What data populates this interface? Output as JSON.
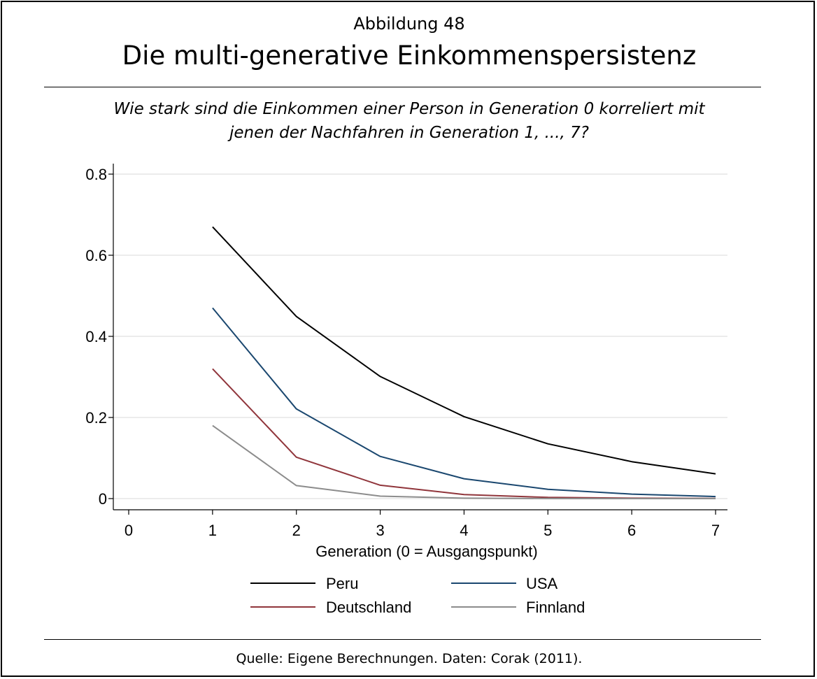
{
  "header": {
    "figure_label": "Abbildung 48",
    "title": "Die multi-generative Einkommenspersistenz",
    "subtitle_line1": "Wie stark sind die Einkommen einer Person in Generation 0 korreliert mit",
    "subtitle_line2": "jenen der Nachfahren in Generation 1, ..., 7?"
  },
  "footer": {
    "source": "Quelle: Eigene Berechnungen. Daten: Corak (2011)."
  },
  "chart_data": {
    "type": "line",
    "title": "Die multi-generative Einkommenspersistenz",
    "xlabel": "Generation (0 = Ausgangspunkt)",
    "ylabel": "",
    "xlim": [
      0,
      7
    ],
    "ylim": [
      0,
      0.8
    ],
    "x_ticks": [
      "0",
      "1",
      "2",
      "3",
      "4",
      "5",
      "6",
      "7"
    ],
    "y_ticks": [
      {
        "value": 0,
        "label": "0"
      },
      {
        "value": 0.2,
        "label": "0.2"
      },
      {
        "value": 0.4,
        "label": "0.4"
      },
      {
        "value": 0.6,
        "label": "0.6"
      },
      {
        "value": 0.8,
        "label": "0.8"
      }
    ],
    "grid": true,
    "legend_position": "bottom",
    "x": [
      1,
      2,
      3,
      4,
      5,
      6,
      7
    ],
    "series": [
      {
        "name": "Peru",
        "color": "#000000",
        "values": [
          0.67,
          0.449,
          0.301,
          0.202,
          0.135,
          0.091,
          0.061
        ]
      },
      {
        "name": "USA",
        "color": "#1a476f",
        "values": [
          0.47,
          0.221,
          0.104,
          0.049,
          0.023,
          0.011,
          0.005
        ]
      },
      {
        "name": "Deutschland",
        "color": "#90353b",
        "values": [
          0.32,
          0.102,
          0.033,
          0.01,
          0.003,
          0.001,
          0.0003
        ]
      },
      {
        "name": "Finnland",
        "color": "#8c8c8c",
        "values": [
          0.18,
          0.032,
          0.006,
          0.001,
          0.0002,
          3e-05,
          1e-05
        ]
      }
    ]
  }
}
